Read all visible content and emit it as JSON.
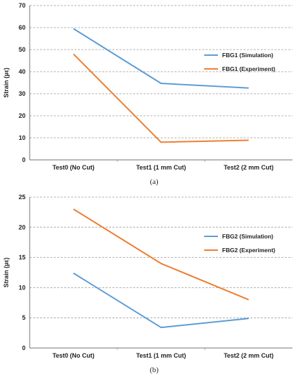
{
  "chart_data": [
    {
      "type": "line",
      "id": "a",
      "caption": "(a)",
      "categories": [
        "Test0 (No Cut)",
        "Test1 (1 mm Cut)",
        "Test2 (2 mm Cut)"
      ],
      "ylabel": "Strain (µε)",
      "ylim": [
        0,
        70
      ],
      "yticks": [
        0,
        10,
        20,
        30,
        40,
        50,
        60,
        70
      ],
      "grid": true,
      "legend_position": "right",
      "series": [
        {
          "name": "FBG1 (Simulation)",
          "color": "#5b9bd5",
          "values": [
            59.5,
            34.7,
            32.6
          ]
        },
        {
          "name": "FBG1 (Experiment)",
          "color": "#ed7d31",
          "values": [
            48.0,
            8.0,
            8.9
          ]
        }
      ]
    },
    {
      "type": "line",
      "id": "b",
      "caption": "(b)",
      "categories": [
        "Test0 (No Cut)",
        "Test1 (1 mm Cut)",
        "Test2 (2 mm Cut)"
      ],
      "ylabel": "Strain (µε)",
      "ylim": [
        0,
        25
      ],
      "yticks": [
        0,
        5,
        10,
        15,
        20,
        25
      ],
      "grid": true,
      "legend_position": "right",
      "series": [
        {
          "name": "FBG2 (Simulation)",
          "color": "#5b9bd5",
          "values": [
            12.4,
            3.4,
            4.9
          ]
        },
        {
          "name": "FBG2 (Experiment)",
          "color": "#ed7d31",
          "values": [
            23.0,
            14.0,
            8.0
          ]
        }
      ]
    }
  ]
}
